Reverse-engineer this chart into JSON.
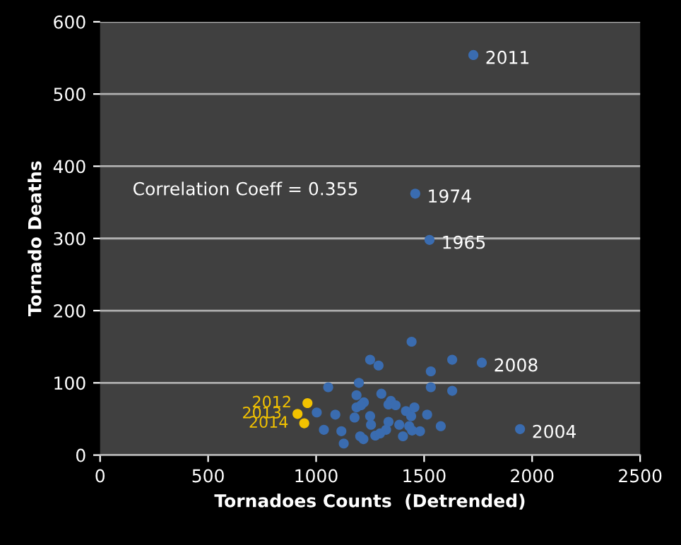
{
  "chart_data": {
    "type": "scatter",
    "xlabel": "Tornadoes Counts  (Detrended)",
    "ylabel": "Tornado Deaths",
    "xlim": [
      0,
      2500
    ],
    "ylim": [
      0,
      600
    ],
    "xticks": [
      0,
      500,
      1000,
      1500,
      2000,
      2500
    ],
    "yticks": [
      0,
      100,
      200,
      300,
      400,
      500,
      600
    ],
    "grid": "y",
    "legend": false,
    "marker": "circle",
    "series": [
      {
        "color": "#3a6cb0",
        "x": [
          1728,
          1459,
          1525,
          1767,
          1944,
          1442,
          1250,
          1289,
          1630,
          1531,
          1531,
          1630,
          1056,
          1198,
          1187,
          1302,
          1221,
          1187,
          1208,
          1346,
          1335,
          1368,
          1455,
          1416,
          1440,
          1514,
          1003,
          1089,
          1178,
          1250,
          1254,
          1335,
          1385,
          1431,
          1577,
          1036,
          1117,
          1324,
          1444,
          1481,
          1204,
          1219,
          1274,
          1296,
          1402,
          1128
        ],
        "values": [
          554,
          362,
          298,
          128,
          36,
          157,
          132,
          124,
          132,
          116,
          94,
          89,
          94,
          100,
          83,
          85,
          73,
          66,
          69,
          75,
          70,
          69,
          66,
          61,
          54,
          56,
          59,
          56,
          52,
          54,
          42,
          46,
          42,
          40,
          40,
          35,
          33,
          35,
          34,
          33,
          26,
          22,
          27,
          30,
          26,
          16
        ]
      },
      {
        "color": "#f2c200",
        "x": [
          960,
          914,
          945
        ],
        "values": [
          72,
          57,
          44
        ]
      }
    ],
    "annotations": [
      {
        "text": "2011",
        "x": 1728,
        "y": 554
      },
      {
        "text": "1974",
        "x": 1459,
        "y": 362
      },
      {
        "text": "1965",
        "x": 1525,
        "y": 298
      },
      {
        "text": "2008",
        "x": 1767,
        "y": 128
      },
      {
        "text": "2004",
        "x": 1944,
        "y": 36
      },
      {
        "text": "2012",
        "x": 960,
        "y": 72
      },
      {
        "text": "2013",
        "x": 914,
        "y": 57
      },
      {
        "text": "2014",
        "x": 945,
        "y": 44
      },
      "Correlation Coeff = 0.355"
    ]
  }
}
